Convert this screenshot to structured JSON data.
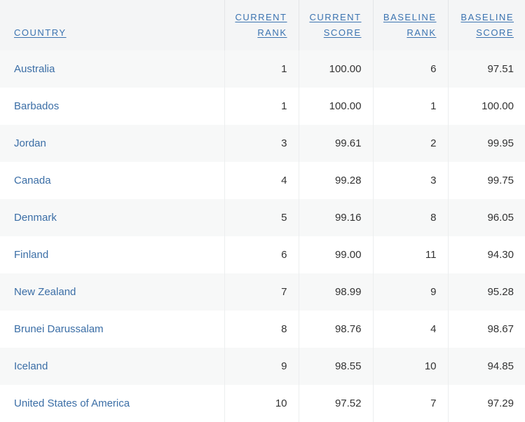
{
  "table": {
    "headers": {
      "country": [
        "COUNTRY"
      ],
      "current_rank": [
        "CURRENT",
        "RANK"
      ],
      "current_score": [
        "CURRENT",
        "SCORE"
      ],
      "baseline_rank": [
        "BASELINE",
        "RANK"
      ],
      "baseline_score": [
        "BASELINE",
        "SCORE"
      ]
    },
    "rows": [
      {
        "country": "Australia",
        "current_rank": "1",
        "current_score": "100.00",
        "baseline_rank": "6",
        "baseline_score": "97.51"
      },
      {
        "country": "Barbados",
        "current_rank": "1",
        "current_score": "100.00",
        "baseline_rank": "1",
        "baseline_score": "100.00"
      },
      {
        "country": "Jordan",
        "current_rank": "3",
        "current_score": "99.61",
        "baseline_rank": "2",
        "baseline_score": "99.95"
      },
      {
        "country": "Canada",
        "current_rank": "4",
        "current_score": "99.28",
        "baseline_rank": "3",
        "baseline_score": "99.75"
      },
      {
        "country": "Denmark",
        "current_rank": "5",
        "current_score": "99.16",
        "baseline_rank": "8",
        "baseline_score": "96.05"
      },
      {
        "country": "Finland",
        "current_rank": "6",
        "current_score": "99.00",
        "baseline_rank": "11",
        "baseline_score": "94.30"
      },
      {
        "country": "New Zealand",
        "current_rank": "7",
        "current_score": "98.99",
        "baseline_rank": "9",
        "baseline_score": "95.28"
      },
      {
        "country": "Brunei Darussalam",
        "current_rank": "8",
        "current_score": "98.76",
        "baseline_rank": "4",
        "baseline_score": "98.67"
      },
      {
        "country": "Iceland",
        "current_rank": "9",
        "current_score": "98.55",
        "baseline_rank": "10",
        "baseline_score": "94.85"
      },
      {
        "country": "United States of America",
        "current_rank": "10",
        "current_score": "97.52",
        "baseline_rank": "7",
        "baseline_score": "97.29"
      }
    ]
  },
  "colors": {
    "link": "#3b73b0",
    "text": "#333333",
    "header_bg": "#f4f5f6",
    "row_alt_bg": "#f7f8f8"
  }
}
